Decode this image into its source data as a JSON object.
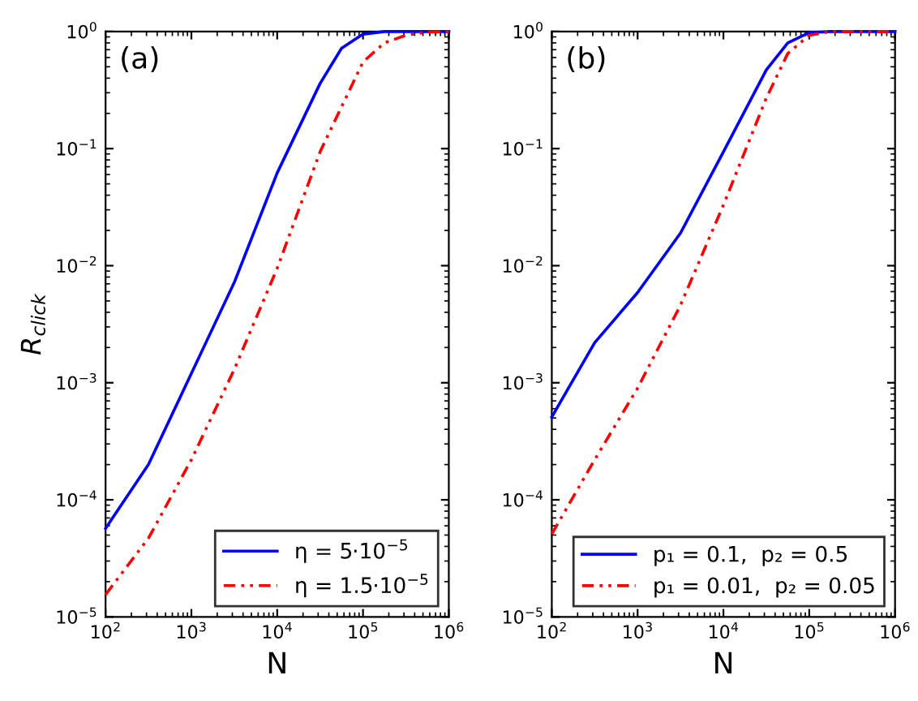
{
  "chart_data": [
    {
      "type": "line",
      "annotations": [
        "(a)"
      ],
      "xlabel": "N",
      "ylabel": "R$_{click}$",
      "log": "xy",
      "grid": false,
      "legend": "bottom right",
      "xlim": [
        100,
        1000000
      ],
      "ylim": [
        1e-05,
        1
      ],
      "xticks": [
        {
          "value": 100,
          "label": "10$^{2}$"
        },
        {
          "value": 1000,
          "label": "10$^{3}$"
        },
        {
          "value": 10000,
          "label": "10$^{4}$"
        },
        {
          "value": 100000,
          "label": "10$^{5}$"
        },
        {
          "value": 1000000,
          "label": "10$^{6}$"
        }
      ],
      "yticks": [
        {
          "value": 1e-05,
          "label": "10$^{−5}$"
        },
        {
          "value": 0.0001,
          "label": "10$^{−4}$"
        },
        {
          "value": 0.001,
          "label": "10$^{−3}$"
        },
        {
          "value": 0.01,
          "label": "10$^{−2}$"
        },
        {
          "value": 0.1,
          "label": "10$^{−1}$"
        },
        {
          "value": 1,
          "label": "10$^{0}$"
        }
      ],
      "series": [
        {
          "name": "η = 5·10$^{−5}$",
          "color": "#0000ff",
          "line_style": "solid",
          "x": [
            100,
            316,
            1000,
            3162,
            10000,
            31623,
            56234,
            100000,
            177828,
            316228,
            1000000
          ],
          "values": [
            5.7e-05,
            0.0002,
            0.0012,
            0.0072,
            0.062,
            0.36,
            0.72,
            0.95,
            1,
            1,
            1
          ]
        },
        {
          "name": "η = 1.5·10$^{−5}$",
          "color": "#ff0000",
          "line_style": "dashdot",
          "x": [
            100,
            316,
            1000,
            3162,
            10000,
            31623,
            100000,
            177828,
            316228,
            562341,
            1000000
          ],
          "values": [
            1.55e-05,
            4.7e-05,
            0.00022,
            0.0013,
            0.0095,
            0.094,
            0.55,
            0.8,
            0.93,
            0.99,
            1
          ]
        }
      ]
    },
    {
      "type": "line",
      "annotations": [
        "(b)"
      ],
      "xlabel": "N",
      "log": "xy",
      "grid": false,
      "legend": "bottom right",
      "xlim": [
        100,
        1000000
      ],
      "ylim": [
        1e-05,
        1
      ],
      "xticks": [
        {
          "value": 100,
          "label": "10$^{2}$"
        },
        {
          "value": 1000,
          "label": "10$^{3}$"
        },
        {
          "value": 10000,
          "label": "10$^{4}$"
        },
        {
          "value": 100000,
          "label": "10$^{5}$"
        },
        {
          "value": 1000000,
          "label": "10$^{6}$"
        }
      ],
      "yticks": [
        {
          "value": 1e-05,
          "label": "10$^{−5}$"
        },
        {
          "value": 0.0001,
          "label": "10$^{−4}$"
        },
        {
          "value": 0.001,
          "label": "10$^{−3}$"
        },
        {
          "value": 0.01,
          "label": "10$^{−2}$"
        },
        {
          "value": 0.1,
          "label": "10$^{−1}$"
        },
        {
          "value": 1,
          "label": "10$^{0}$"
        }
      ],
      "series": [
        {
          "name": "p₁ = 0.1,  p₂ = 0.5",
          "color": "#0000ff",
          "line_style": "solid",
          "x": [
            100,
            316,
            1000,
            3162,
            10000,
            31623,
            56234,
            100000,
            177828,
            1000000
          ],
          "values": [
            0.00051,
            0.0022,
            0.0059,
            0.019,
            0.094,
            0.47,
            0.8,
            0.98,
            1,
            1
          ]
        },
        {
          "name": "p₁ = 0.01,  p₂ = 0.05",
          "color": "#ff0000",
          "line_style": "dashdot",
          "x": [
            100,
            316,
            1000,
            3162,
            10000,
            31623,
            56234,
            100000,
            177828,
            1000000
          ],
          "values": [
            5.1e-05,
            0.00022,
            0.0009,
            0.0046,
            0.033,
            0.27,
            0.65,
            0.93,
            1,
            1
          ]
        }
      ]
    }
  ]
}
